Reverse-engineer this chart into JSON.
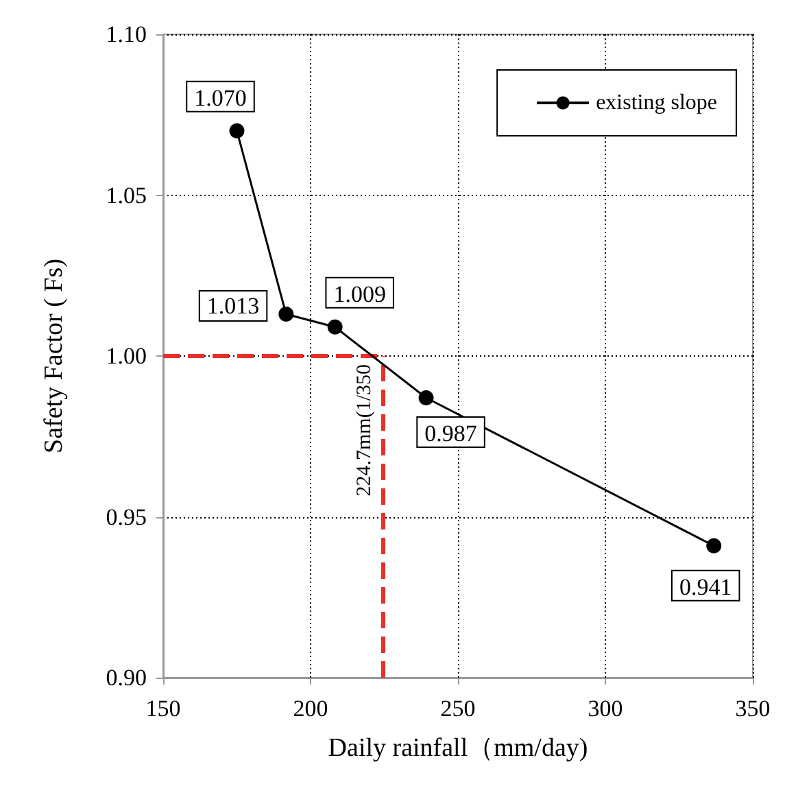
{
  "chart_data": {
    "type": "line",
    "xlabel": "Daily rainfall（mm/day)",
    "ylabel": "Safety Factor ( Fs)",
    "x": [
      175.0,
      191.7,
      208.3,
      239.2,
      336.8
    ],
    "series": [
      {
        "name": "existing slope",
        "color": "#000000",
        "values": [
          1.07,
          1.013,
          1.009,
          0.987,
          0.941
        ],
        "value_labels": [
          "1.070",
          "1.013",
          "1.009",
          "0.987",
          "0.941"
        ]
      }
    ],
    "xlim": [
      150,
      350
    ],
    "xticks": [
      150,
      200,
      250,
      300,
      350
    ],
    "ylim": [
      0.9,
      1.1
    ],
    "yticks": [
      {
        "value": 0.9,
        "label": "0.90"
      },
      {
        "value": 0.95,
        "label": "0.95"
      },
      {
        "value": 1.0,
        "label": "1.00"
      },
      {
        "value": 1.05,
        "label": "1.05"
      },
      {
        "value": 1.1,
        "label": "1.10"
      }
    ],
    "ref_lines": [
      {
        "axis": "x",
        "value": 224.7,
        "label": "224.7mm(1/350",
        "color": "#e8302a",
        "line_style": "dashed"
      },
      {
        "axis": "y",
        "value": 1.0,
        "label": null,
        "color": "#e8302a",
        "line_style": "dashed"
      }
    ],
    "grid": true,
    "legend": "top right",
    "marker": "circle",
    "line_style": "solid"
  }
}
